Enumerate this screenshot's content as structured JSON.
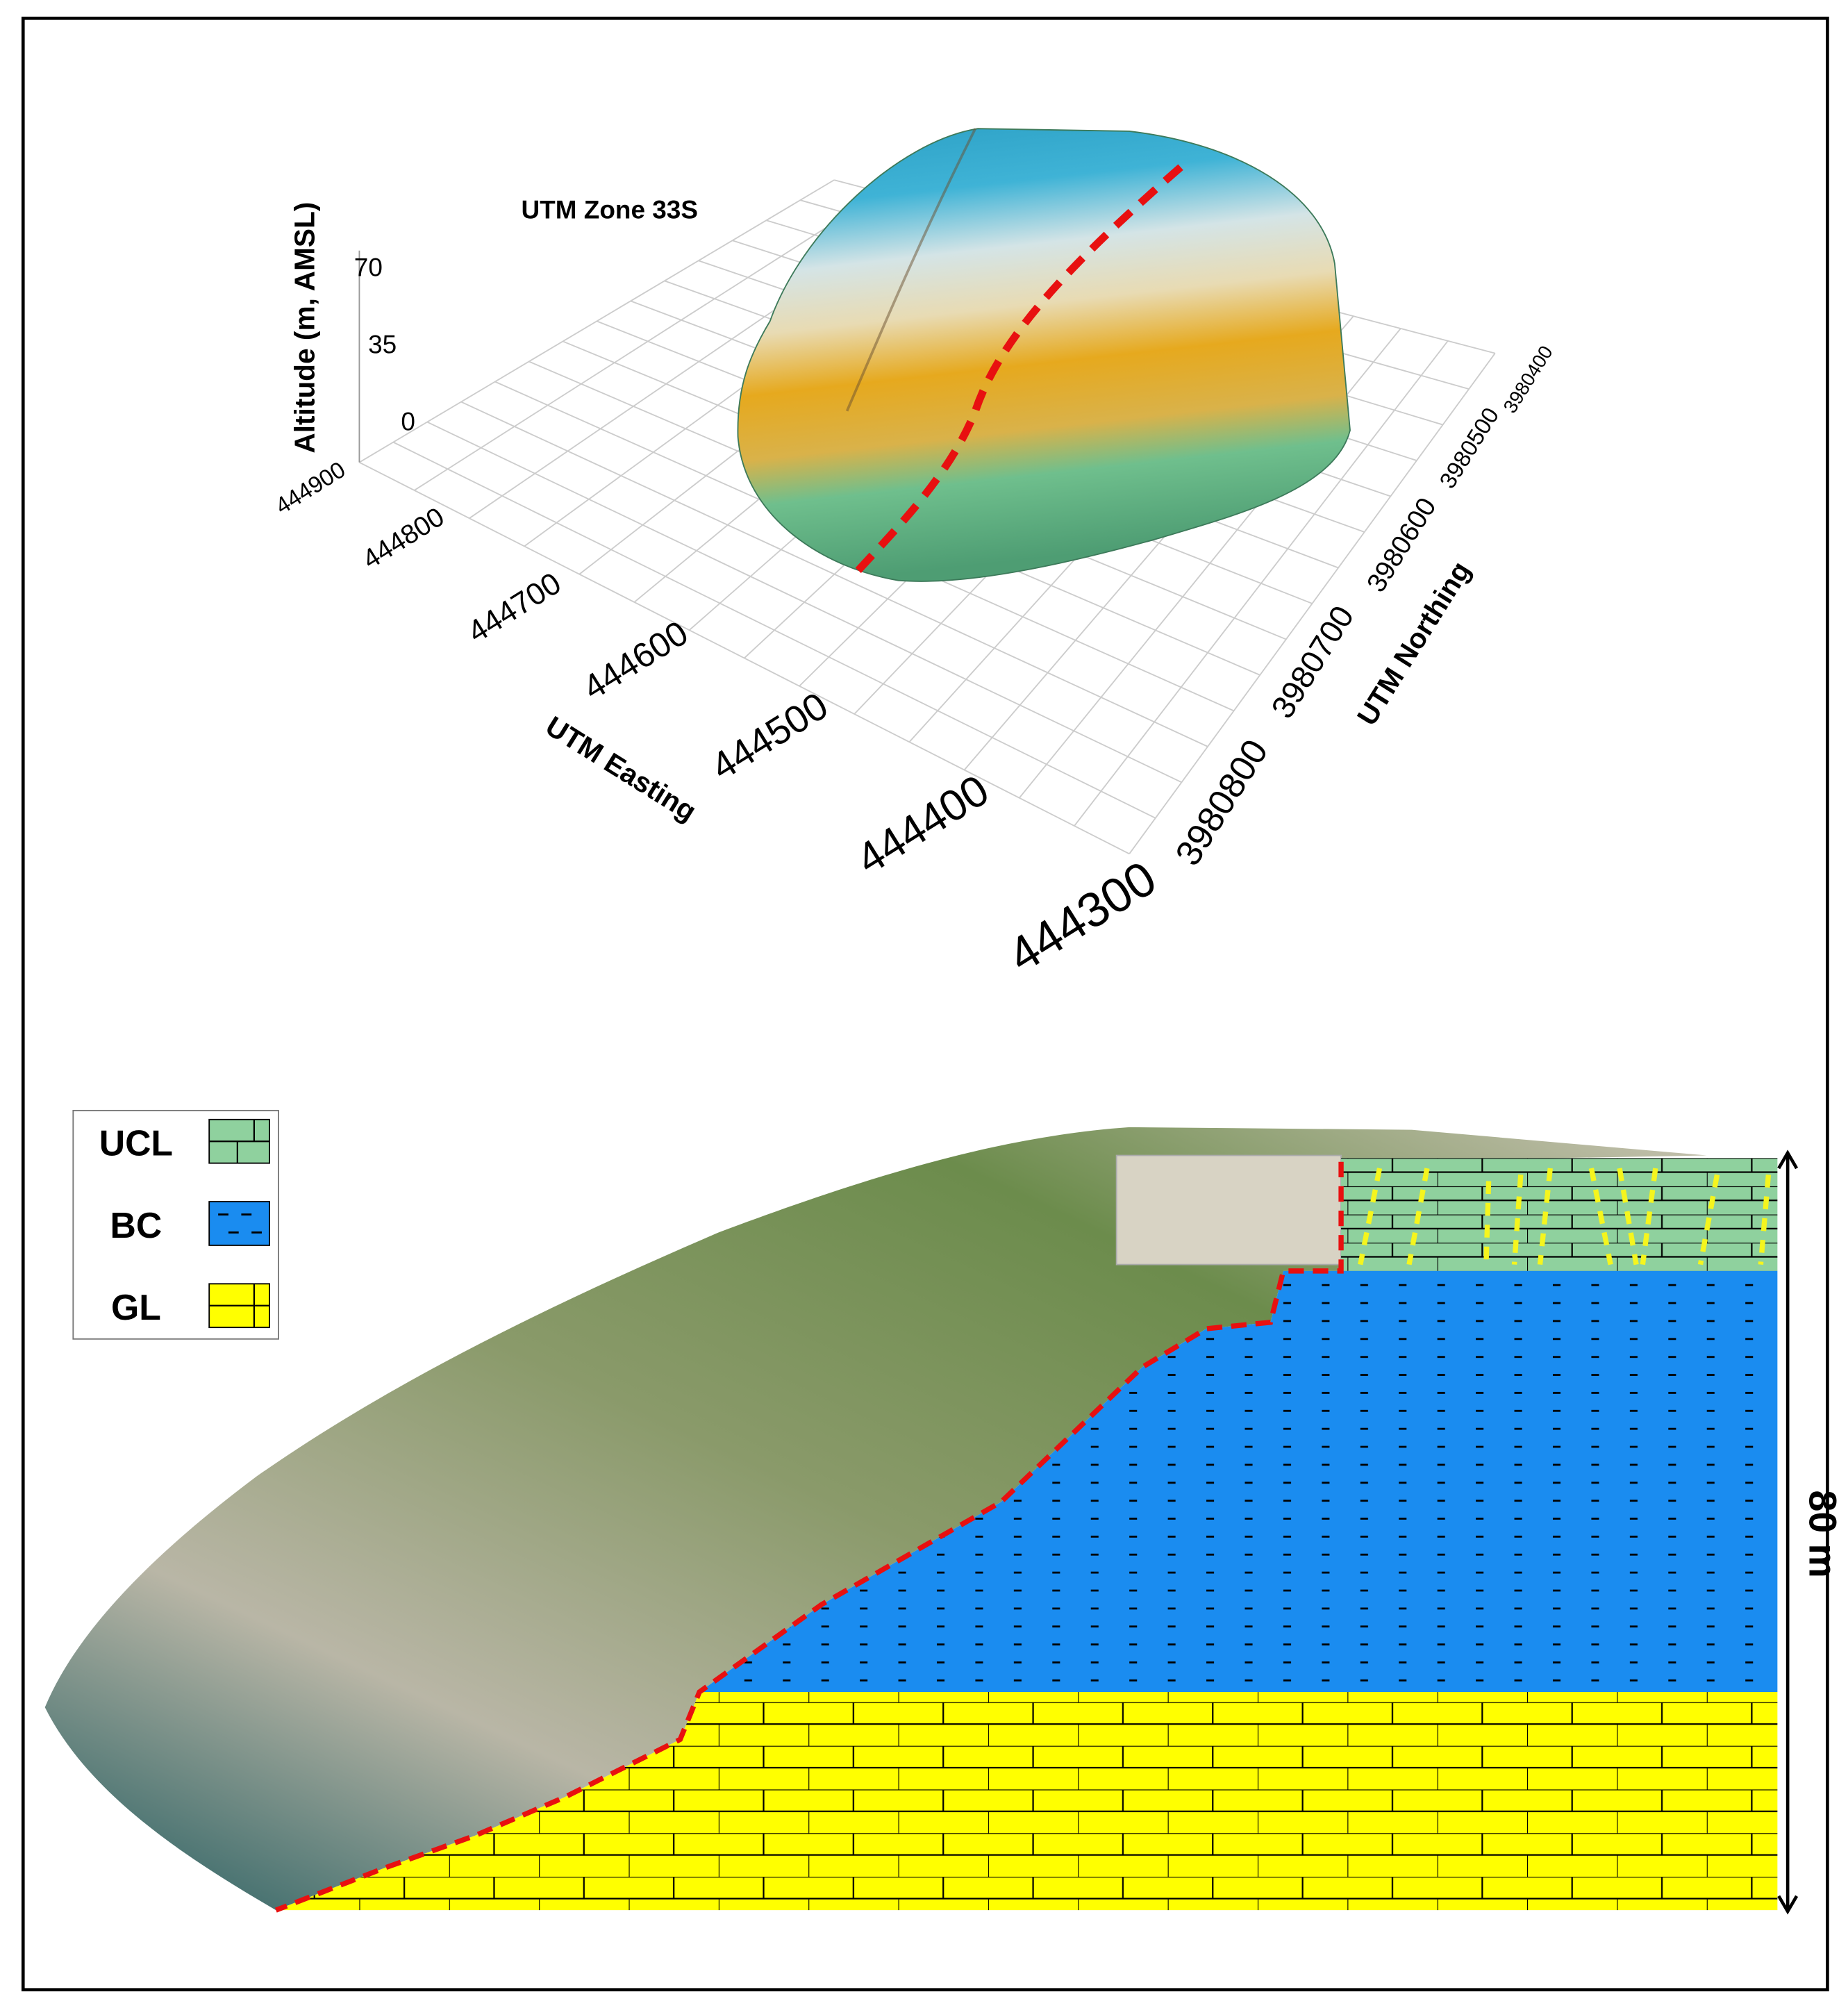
{
  "figure": {
    "map3d": {
      "title": "UTM Zone 33S",
      "z_label": "Altitude (m, AMSL)",
      "z_ticks": [
        "70",
        "35",
        "0"
      ],
      "easting_label": "UTM Easting",
      "easting_ticks": [
        "444900",
        "444800",
        "444700",
        "444600",
        "444500",
        "444400",
        "444300"
      ],
      "northing_label": "UTM Northing",
      "northing_ticks": [
        "3980400",
        "3980500",
        "3980600",
        "3980700",
        "3980800"
      ]
    },
    "section": {
      "legend": [
        "UCL",
        "BC",
        "GL"
      ],
      "thickness_label": "80 m"
    }
  }
}
